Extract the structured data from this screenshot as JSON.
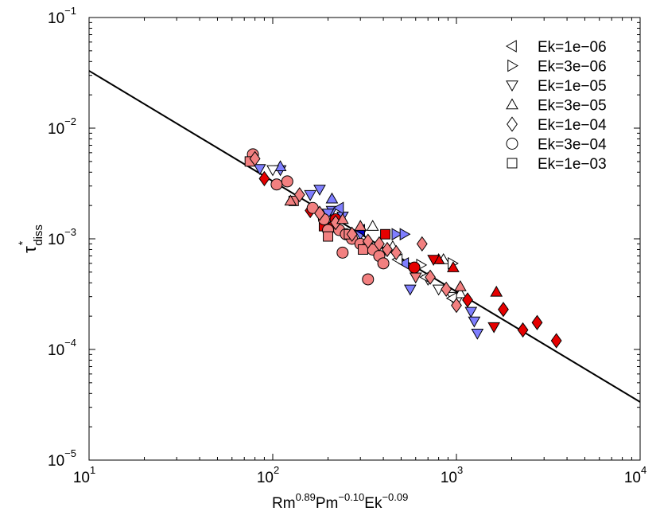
{
  "chart_data": {
    "type": "scatter",
    "xscale": "log",
    "yscale": "log",
    "xlim": [
      10,
      10000
    ],
    "ylim": [
      1e-05,
      0.1
    ],
    "x_ticks": [
      {
        "value": 10,
        "base": "10",
        "exp": "1"
      },
      {
        "value": 100,
        "base": "10",
        "exp": "2"
      },
      {
        "value": 1000,
        "base": "10",
        "exp": "3"
      },
      {
        "value": 10000,
        "base": "10",
        "exp": "4"
      }
    ],
    "y_ticks": [
      {
        "value": 1e-05,
        "base": "10",
        "exp": "−5"
      },
      {
        "value": 0.0001,
        "base": "10",
        "exp": "−4"
      },
      {
        "value": 0.001,
        "base": "10",
        "exp": "−3"
      },
      {
        "value": 0.01,
        "base": "10",
        "exp": "−2"
      },
      {
        "value": 0.1,
        "base": "10",
        "exp": "−1"
      }
    ],
    "xlabel": {
      "parts": [
        {
          "text": "Rm",
          "sup": false
        },
        {
          "text": "0.89",
          "sup": true
        },
        {
          "text": "Pm",
          "sup": false
        },
        {
          "text": "−0.10",
          "sup": true
        },
        {
          "text": "Ek",
          "sup": false
        },
        {
          "text": "−0.09",
          "sup": true
        }
      ]
    },
    "ylabel": {
      "main": "τ",
      "sup": "*",
      "sub": "diss"
    },
    "fit_line": {
      "x": [
        10,
        10000
      ],
      "y": [
        0.033,
        3.35e-05
      ]
    },
    "legend": {
      "position": "top-right",
      "entries": [
        {
          "label": "Ek=1e−06",
          "marker": "triangle-left"
        },
        {
          "label": "Ek=3e−06",
          "marker": "triangle-right"
        },
        {
          "label": "Ek=1e−05",
          "marker": "triangle-down"
        },
        {
          "label": "Ek=3e−05",
          "marker": "triangle-up"
        },
        {
          "label": "Ek=1e−04",
          "marker": "diamond"
        },
        {
          "label": "Ek=3e−04",
          "marker": "circle"
        },
        {
          "label": "Ek=1e−03",
          "marker": "square"
        }
      ]
    },
    "colors": {
      "red": "#e50000",
      "pink": "#f28080",
      "blue": "#7f7fff",
      "white": "#ffffff",
      "darkblue": "#0000cc"
    },
    "points": [
      {
        "marker": "triangle-down",
        "color": "blue",
        "x": 110,
        "y": 0.0042
      },
      {
        "marker": "triangle-down",
        "color": "blue",
        "x": 160,
        "y": 0.0025
      },
      {
        "marker": "triangle-down",
        "color": "blue",
        "x": 180,
        "y": 0.0028
      },
      {
        "marker": "triangle-down",
        "color": "blue",
        "x": 210,
        "y": 0.0018
      },
      {
        "marker": "triangle-down",
        "color": "blue",
        "x": 240,
        "y": 0.0016
      },
      {
        "marker": "triangle-down",
        "color": "blue",
        "x": 300,
        "y": 0.0011
      },
      {
        "marker": "triangle-down",
        "color": "blue",
        "x": 560,
        "y": 0.00035
      },
      {
        "marker": "triangle-down",
        "color": "blue",
        "x": 1200,
        "y": 0.00022
      },
      {
        "marker": "triangle-down",
        "color": "blue",
        "x": 1250,
        "y": 0.00018
      },
      {
        "marker": "triangle-down",
        "color": "blue",
        "x": 1300,
        "y": 0.00014
      },
      {
        "marker": "triangle-down",
        "color": "blue",
        "x": 85,
        "y": 0.0043
      },
      {
        "marker": "triangle-down",
        "color": "blue",
        "x": 200,
        "y": 0.0017
      },
      {
        "marker": "triangle-right",
        "color": "blue",
        "x": 470,
        "y": 0.0011
      },
      {
        "marker": "triangle-right",
        "color": "blue",
        "x": 520,
        "y": 0.0011
      },
      {
        "marker": "triangle-up",
        "color": "blue",
        "x": 110,
        "y": 0.0045
      },
      {
        "marker": "triangle-up",
        "color": "blue",
        "x": 210,
        "y": 0.0023
      },
      {
        "marker": "triangle-up",
        "color": "blue",
        "x": 330,
        "y": 0.00095
      },
      {
        "marker": "triangle-left",
        "color": "blue",
        "x": 230,
        "y": 0.0019
      },
      {
        "marker": "triangle-left",
        "color": "blue",
        "x": 520,
        "y": 0.0006
      },
      {
        "marker": "triangle-left",
        "color": "darkblue",
        "x": 300,
        "y": 0.0012
      },
      {
        "marker": "triangle-down",
        "color": "white",
        "x": 100,
        "y": 0.0042
      },
      {
        "marker": "triangle-down",
        "color": "white",
        "x": 400,
        "y": 0.00075
      },
      {
        "marker": "triangle-down",
        "color": "white",
        "x": 700,
        "y": 0.00043
      },
      {
        "marker": "triangle-down",
        "color": "white",
        "x": 800,
        "y": 0.00035
      },
      {
        "marker": "triangle-down",
        "color": "white",
        "x": 950,
        "y": 0.0003
      },
      {
        "marker": "triangle-down",
        "color": "white",
        "x": 1000,
        "y": 0.00027
      },
      {
        "marker": "triangle-up",
        "color": "white",
        "x": 350,
        "y": 0.0013
      },
      {
        "marker": "triangle-up",
        "color": "white",
        "x": 450,
        "y": 0.00085
      },
      {
        "marker": "triangle-up",
        "color": "white",
        "x": 850,
        "y": 0.00065
      },
      {
        "marker": "triangle-up",
        "color": "white",
        "x": 1050,
        "y": 0.00032
      },
      {
        "marker": "triangle-right",
        "color": "white",
        "x": 950,
        "y": 0.0006
      },
      {
        "marker": "triangle-right",
        "color": "white",
        "x": 640,
        "y": 0.00058
      },
      {
        "marker": "triangle-left",
        "color": "white",
        "x": 480,
        "y": 0.00065
      },
      {
        "marker": "triangle-left",
        "color": "white",
        "x": 680,
        "y": 0.00045
      },
      {
        "marker": "triangle-left",
        "color": "white",
        "x": 950,
        "y": 0.00029
      },
      {
        "marker": "triangle-up",
        "color": "red",
        "x": 1650,
        "y": 0.00033
      },
      {
        "marker": "triangle-up",
        "color": "red",
        "x": 800,
        "y": 0.00065
      },
      {
        "marker": "triangle-up",
        "color": "red",
        "x": 960,
        "y": 0.00055
      },
      {
        "marker": "triangle-down",
        "color": "red",
        "x": 1600,
        "y": 0.00016
      },
      {
        "marker": "triangle-down",
        "color": "red",
        "x": 750,
        "y": 0.00065
      },
      {
        "marker": "diamond",
        "color": "red",
        "x": 3500,
        "y": 0.00012
      },
      {
        "marker": "diamond",
        "color": "red",
        "x": 2750,
        "y": 0.000175
      },
      {
        "marker": "diamond",
        "color": "red",
        "x": 2300,
        "y": 0.00015
      },
      {
        "marker": "diamond",
        "color": "red",
        "x": 1800,
        "y": 0.00023
      },
      {
        "marker": "diamond",
        "color": "red",
        "x": 1150,
        "y": 0.00028
      },
      {
        "marker": "diamond",
        "color": "red",
        "x": 160,
        "y": 0.0018
      },
      {
        "marker": "diamond",
        "color": "red",
        "x": 90,
        "y": 0.0035
      },
      {
        "marker": "diamond",
        "color": "red",
        "x": 210,
        "y": 0.0013
      },
      {
        "marker": "circle",
        "color": "red",
        "x": 590,
        "y": 0.00055
      },
      {
        "marker": "circle",
        "color": "red",
        "x": 220,
        "y": 0.0015
      },
      {
        "marker": "square",
        "color": "red",
        "x": 410,
        "y": 0.0011
      },
      {
        "marker": "square",
        "color": "red",
        "x": 190,
        "y": 0.0013
      },
      {
        "marker": "circle",
        "color": "pink",
        "x": 78,
        "y": 0.0058
      },
      {
        "marker": "circle",
        "color": "pink",
        "x": 105,
        "y": 0.0031
      },
      {
        "marker": "circle",
        "color": "pink",
        "x": 120,
        "y": 0.0033
      },
      {
        "marker": "circle",
        "color": "pink",
        "x": 165,
        "y": 0.0019
      },
      {
        "marker": "circle",
        "color": "pink",
        "x": 190,
        "y": 0.0015
      },
      {
        "marker": "circle",
        "color": "pink",
        "x": 230,
        "y": 0.0012
      },
      {
        "marker": "circle",
        "color": "pink",
        "x": 250,
        "y": 0.0011
      },
      {
        "marker": "circle",
        "color": "pink",
        "x": 270,
        "y": 0.001
      },
      {
        "marker": "circle",
        "color": "pink",
        "x": 300,
        "y": 0.0009
      },
      {
        "marker": "circle",
        "color": "pink",
        "x": 330,
        "y": 0.00085
      },
      {
        "marker": "circle",
        "color": "pink",
        "x": 350,
        "y": 0.0008
      },
      {
        "marker": "circle",
        "color": "pink",
        "x": 380,
        "y": 0.0007
      },
      {
        "marker": "circle",
        "color": "pink",
        "x": 400,
        "y": 0.0006
      },
      {
        "marker": "circle",
        "color": "pink",
        "x": 240,
        "y": 0.00075
      },
      {
        "marker": "circle",
        "color": "pink",
        "x": 330,
        "y": 0.00043
      },
      {
        "marker": "circle",
        "color": "pink",
        "x": 200,
        "y": 0.0012
      },
      {
        "marker": "square",
        "color": "pink",
        "x": 75,
        "y": 0.005
      },
      {
        "marker": "square",
        "color": "pink",
        "x": 130,
        "y": 0.0022
      },
      {
        "marker": "square",
        "color": "pink",
        "x": 200,
        "y": 0.00105
      },
      {
        "marker": "square",
        "color": "pink",
        "x": 260,
        "y": 0.0011
      },
      {
        "marker": "square",
        "color": "pink",
        "x": 310,
        "y": 0.0008
      },
      {
        "marker": "diamond",
        "color": "pink",
        "x": 80,
        "y": 0.0053
      },
      {
        "marker": "diamond",
        "color": "pink",
        "x": 140,
        "y": 0.0025
      },
      {
        "marker": "diamond",
        "color": "pink",
        "x": 180,
        "y": 0.0017
      },
      {
        "marker": "diamond",
        "color": "pink",
        "x": 220,
        "y": 0.0014
      },
      {
        "marker": "diamond",
        "color": "pink",
        "x": 270,
        "y": 0.0011
      },
      {
        "marker": "diamond",
        "color": "pink",
        "x": 330,
        "y": 0.00095
      },
      {
        "marker": "diamond",
        "color": "pink",
        "x": 380,
        "y": 0.0009
      },
      {
        "marker": "diamond",
        "color": "pink",
        "x": 420,
        "y": 0.0008
      },
      {
        "marker": "diamond",
        "color": "pink",
        "x": 470,
        "y": 0.00075
      },
      {
        "marker": "diamond",
        "color": "pink",
        "x": 650,
        "y": 0.0009
      },
      {
        "marker": "diamond",
        "color": "pink",
        "x": 720,
        "y": 0.00045
      },
      {
        "marker": "diamond",
        "color": "pink",
        "x": 880,
        "y": 0.00035
      },
      {
        "marker": "diamond",
        "color": "pink",
        "x": 1000,
        "y": 0.00025
      },
      {
        "marker": "triangle-up",
        "color": "pink",
        "x": 125,
        "y": 0.0022
      },
      {
        "marker": "triangle-up",
        "color": "pink",
        "x": 240,
        "y": 0.0015
      },
      {
        "marker": "triangle-up",
        "color": "pink",
        "x": 300,
        "y": 0.0013
      },
      {
        "marker": "triangle-up",
        "color": "pink",
        "x": 1050,
        "y": 0.00037
      },
      {
        "marker": "triangle-down",
        "color": "pink",
        "x": 600,
        "y": 0.00045
      }
    ]
  }
}
